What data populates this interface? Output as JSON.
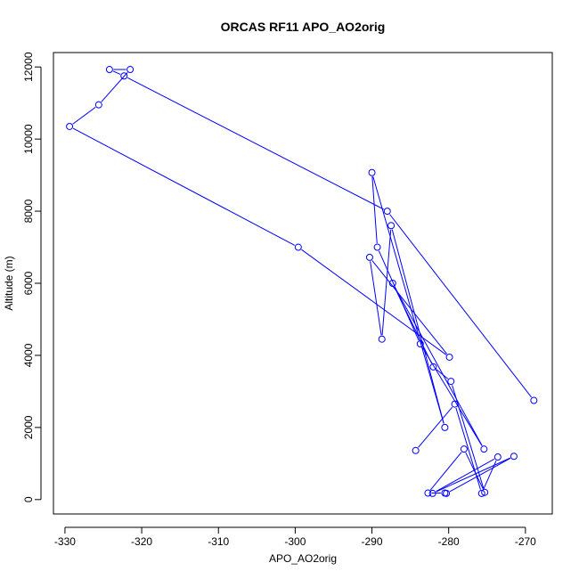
{
  "chart_data": {
    "type": "line",
    "title": "ORCAS RF11 APO_AO2orig",
    "xlabel": "APO_AO2orig",
    "ylabel": "Altitude (m)",
    "xlim": [
      -331.5,
      -266.5
    ],
    "ylim": [
      -400,
      12400
    ],
    "xticks": [
      -330,
      -320,
      -310,
      -300,
      -290,
      -280,
      -270
    ],
    "yticks": [
      0,
      2000,
      4000,
      6000,
      8000,
      10000,
      12000
    ],
    "grid": false,
    "color": "#0000ff",
    "markers": "open-circle",
    "series": [
      {
        "x": [
          -268.9,
          -288.0,
          -322.3,
          -324.2,
          -321.5,
          -325.6,
          -329.4,
          -299.6,
          -279.9,
          -290.3,
          -288.7,
          -287.5,
          -280.5,
          -290.0,
          -289.3,
          -283.7,
          -275.4,
          -287.3,
          -282.0,
          -279.7,
          -275.3,
          -278.0,
          -282.7,
          -280.5,
          -280.3,
          -271.5,
          -282.1,
          -273.6,
          -275.7,
          -279.2,
          -284.3
        ],
        "y": [
          2750,
          8000,
          11750,
          11930,
          11930,
          10950,
          10350,
          7000,
          3950,
          6720,
          4450,
          7600,
          2000,
          9070,
          7000,
          4320,
          1400,
          6000,
          3680,
          3280,
          200,
          1400,
          180,
          180,
          170,
          1200,
          170,
          1180,
          170,
          2650,
          1360
        ]
      }
    ]
  }
}
